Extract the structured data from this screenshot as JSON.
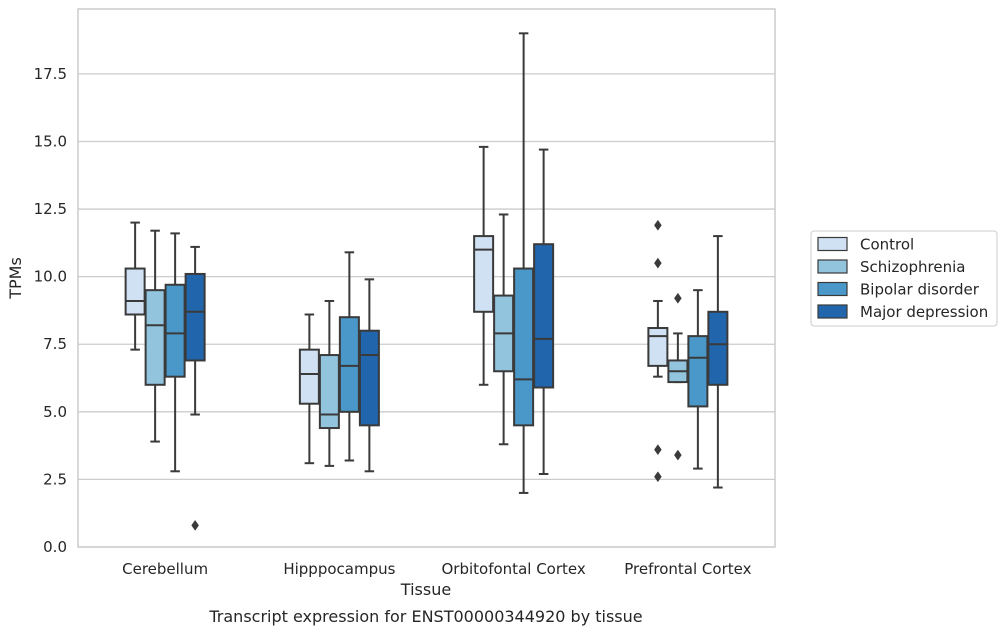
{
  "chart_data": {
    "type": "box",
    "xlabel": "Tissue",
    "ylabel": "TPMs",
    "caption": "Transcript expression for ENST00000344920 by tissue",
    "ylim": [
      0,
      19.9
    ],
    "yticks": [
      "0.0",
      "2.5",
      "5.0",
      "7.5",
      "10.0",
      "12.5",
      "15.0",
      "17.5"
    ],
    "grid": "horizontal",
    "legend_position": "right",
    "categories": [
      "Cerebellum",
      "Hipppocampus",
      "Orbitofontal Cortex",
      "Prefrontal Cortex"
    ],
    "series": [
      {
        "name": "Control",
        "color": "#cfe1f2",
        "boxes": [
          {
            "whislo": 7.3,
            "q1": 8.6,
            "med": 9.1,
            "q3": 10.3,
            "whishi": 12.0,
            "fliers": []
          },
          {
            "whislo": 3.1,
            "q1": 5.3,
            "med": 6.4,
            "q3": 7.3,
            "whishi": 8.6,
            "fliers": []
          },
          {
            "whislo": 6.0,
            "q1": 8.7,
            "med": 11.0,
            "q3": 11.5,
            "whishi": 14.8,
            "fliers": []
          },
          {
            "whislo": 6.3,
            "q1": 6.7,
            "med": 7.8,
            "q3": 8.1,
            "whishi": 9.1,
            "fliers": [
              11.9,
              10.5,
              3.6,
              2.6
            ]
          }
        ]
      },
      {
        "name": "Schizophrenia",
        "color": "#93c4de",
        "boxes": [
          {
            "whislo": 3.9,
            "q1": 6.0,
            "med": 8.2,
            "q3": 9.5,
            "whishi": 11.7,
            "fliers": []
          },
          {
            "whislo": 3.0,
            "q1": 4.4,
            "med": 4.9,
            "q3": 7.1,
            "whishi": 9.1,
            "fliers": []
          },
          {
            "whislo": 3.8,
            "q1": 6.5,
            "med": 7.9,
            "q3": 9.3,
            "whishi": 12.3,
            "fliers": []
          },
          {
            "whislo": 6.1,
            "q1": 6.1,
            "med": 6.5,
            "q3": 6.9,
            "whishi": 7.9,
            "fliers": [
              9.2,
              3.4
            ]
          }
        ]
      },
      {
        "name": "Bipolar disorder",
        "color": "#4a98c9",
        "boxes": [
          {
            "whislo": 2.8,
            "q1": 6.3,
            "med": 7.9,
            "q3": 9.7,
            "whishi": 11.6,
            "fliers": []
          },
          {
            "whislo": 3.2,
            "q1": 5.0,
            "med": 6.7,
            "q3": 8.5,
            "whishi": 10.9,
            "fliers": []
          },
          {
            "whislo": 2.0,
            "q1": 4.5,
            "med": 6.2,
            "q3": 10.3,
            "whishi": 19.0,
            "fliers": []
          },
          {
            "whislo": 2.9,
            "q1": 5.2,
            "med": 7.0,
            "q3": 7.8,
            "whishi": 9.5,
            "fliers": []
          }
        ]
      },
      {
        "name": "Major depression",
        "color": "#2166ac",
        "boxes": [
          {
            "whislo": 4.9,
            "q1": 6.9,
            "med": 8.7,
            "q3": 10.1,
            "whishi": 11.1,
            "fliers": [
              0.8
            ]
          },
          {
            "whislo": 2.8,
            "q1": 4.5,
            "med": 7.1,
            "q3": 8.0,
            "whishi": 9.9,
            "fliers": []
          },
          {
            "whislo": 2.7,
            "q1": 5.9,
            "med": 7.7,
            "q3": 11.2,
            "whishi": 14.7,
            "fliers": []
          },
          {
            "whislo": 2.2,
            "q1": 6.0,
            "med": 7.5,
            "q3": 8.7,
            "whishi": 11.5,
            "fliers": []
          }
        ]
      }
    ]
  }
}
